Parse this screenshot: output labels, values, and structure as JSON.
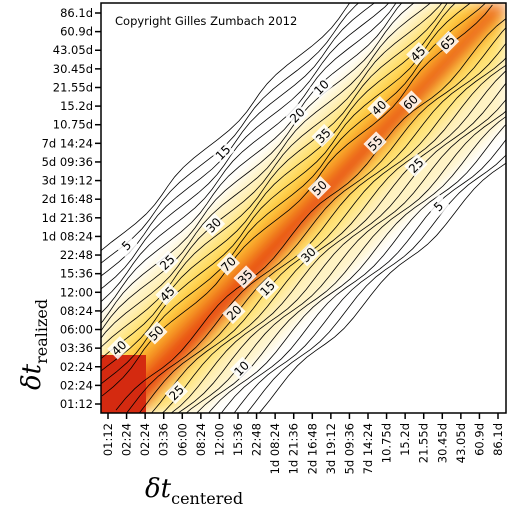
{
  "chart_data": {
    "type": "heatmap",
    "annotation": "Copyright Gilles Zumbach 2012",
    "xlabel": {
      "main": "δt",
      "sub": "centered"
    },
    "ylabel": {
      "main": "δt",
      "sub": "realized"
    },
    "x_ticks": [
      "01:12",
      "02:24",
      "02:24",
      "03:36",
      "06:00",
      "08:24",
      "12:00",
      "15:36",
      "22:48",
      "1d 08:24",
      "1d 21:36",
      "2d 16:48",
      "3d 19:12",
      "5d 09:36",
      "7d 14:24",
      "10.75d",
      "15.2d",
      "21.55d",
      "30.45d",
      "43.05d",
      "60.9d",
      "86.1d"
    ],
    "y_ticks": [
      "01:12",
      "02:24",
      "02:24",
      "03:36",
      "06:00",
      "08:24",
      "12:00",
      "15:36",
      "22:48",
      "1d 08:24",
      "1d 21:36",
      "2d 16:48",
      "3d 19:12",
      "5d 09:36",
      "7d 14:24",
      "10.75d",
      "15.2d",
      "21.55d",
      "30.45d",
      "43.05d",
      "60.9d",
      "86.1d"
    ],
    "contour_levels": [
      5,
      10,
      15,
      20,
      25,
      30,
      35,
      40,
      45,
      50,
      55,
      60,
      65,
      70
    ],
    "contour_labels": [
      {
        "text": "5",
        "x": 1.0,
        "y": 8.5
      },
      {
        "text": "10",
        "x": 7.2,
        "y": 1.9
      },
      {
        "text": "15",
        "x": 8.6,
        "y": 6.2
      },
      {
        "text": "20",
        "x": 6.8,
        "y": 4.9
      },
      {
        "text": "25",
        "x": 3.7,
        "y": 0.6
      },
      {
        "text": "25",
        "x": 3.2,
        "y": 7.6
      },
      {
        "text": "30",
        "x": 5.7,
        "y": 9.6
      },
      {
        "text": "35",
        "x": 7.4,
        "y": 6.8
      },
      {
        "text": "40",
        "x": 0.6,
        "y": 3.0
      },
      {
        "text": "45",
        "x": 3.2,
        "y": 5.9
      },
      {
        "text": "50",
        "x": 2.6,
        "y": 3.8
      },
      {
        "text": "70",
        "x": 6.5,
        "y": 7.5
      },
      {
        "text": "5",
        "x": 17.8,
        "y": 10.6
      },
      {
        "text": "10",
        "x": 11.5,
        "y": 17.0
      },
      {
        "text": "15",
        "x": 6.2,
        "y": 13.5
      },
      {
        "text": "20",
        "x": 10.2,
        "y": 15.5
      },
      {
        "text": "25",
        "x": 16.6,
        "y": 12.8
      },
      {
        "text": "30",
        "x": 10.8,
        "y": 8.0
      },
      {
        "text": "35",
        "x": 11.6,
        "y": 14.4
      },
      {
        "text": "40",
        "x": 14.6,
        "y": 15.9
      },
      {
        "text": "45",
        "x": 16.7,
        "y": 18.8
      },
      {
        "text": "50",
        "x": 11.4,
        "y": 11.6
      },
      {
        "text": "55",
        "x": 14.4,
        "y": 14.0
      },
      {
        "text": "60",
        "x": 16.3,
        "y": 16.2
      },
      {
        "text": "65",
        "x": 18.3,
        "y": 19.4
      }
    ]
  }
}
